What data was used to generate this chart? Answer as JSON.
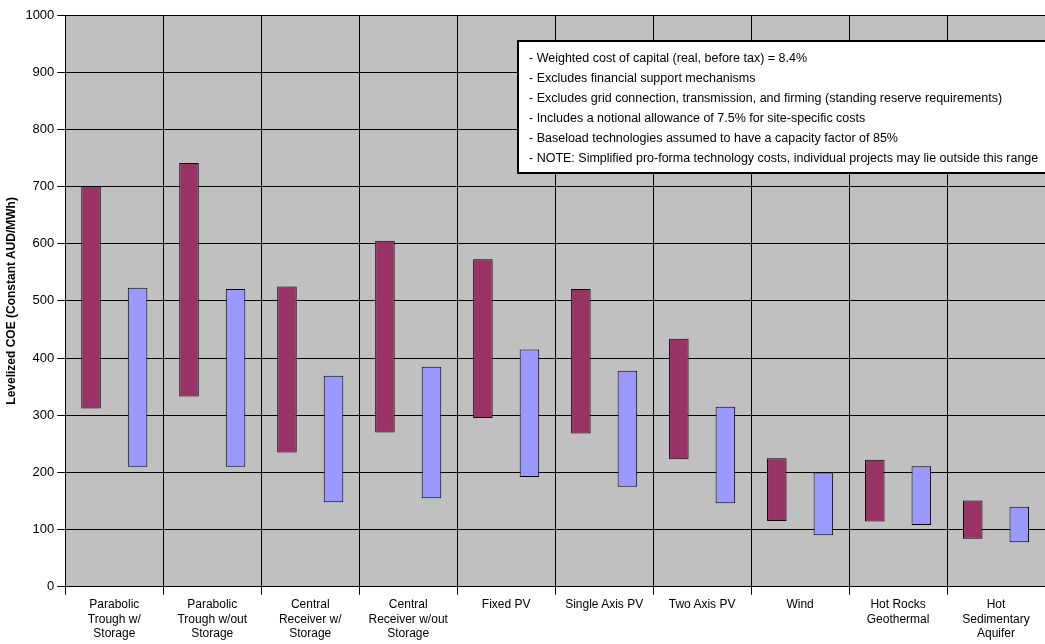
{
  "chart_data": {
    "type": "bar",
    "ylabel": "Levelized COE (Constant AUD/MWh)",
    "categories": [
      "Parabolic Trough w/ Storage",
      "Parabolic Trough w/out Storage",
      "Central Receiver w/ Storage",
      "Central Receiver w/out Storage",
      "Fixed PV",
      "Single Axis PV",
      "Two Axis PV",
      "Wind",
      "Hot Rocks Geothermal",
      "Hot Sedimentary Aquifer"
    ],
    "series": [
      {
        "color": "#993366",
        "base": [
          312,
          333,
          235,
          270,
          295,
          268,
          223,
          115,
          114,
          84
        ],
        "values": [
          388,
          408,
          290,
          335,
          278,
          253,
          211,
          110,
          108,
          67
        ]
      },
      {
        "color": "#9999ff",
        "base": [
          210,
          210,
          148,
          155,
          192,
          175,
          146,
          90,
          108,
          78
        ],
        "values": [
          313,
          311,
          221,
          230,
          223,
          203,
          169,
          110,
          103,
          62
        ]
      }
    ],
    "ylim": [
      0,
      1000
    ],
    "yticks": [
      0,
      100,
      200,
      300,
      400,
      500,
      600,
      700,
      800,
      900,
      1000
    ],
    "grid": true,
    "legend": false,
    "annotations": [
      "- Weighted cost of capital (real, before tax) = 8.4%",
      "- Excludes financial support mechanisms",
      "- Excludes grid connection, transmission, and firming (standing reserve requirements)",
      "- Includes a notional allowance of 7.5% for site-specific costs",
      "- Baseload technologies assumed to have a capacity factor of 85%",
      "- NOTE: Simplified pro-forma technology costs, individual projects may lie outside this range"
    ]
  }
}
